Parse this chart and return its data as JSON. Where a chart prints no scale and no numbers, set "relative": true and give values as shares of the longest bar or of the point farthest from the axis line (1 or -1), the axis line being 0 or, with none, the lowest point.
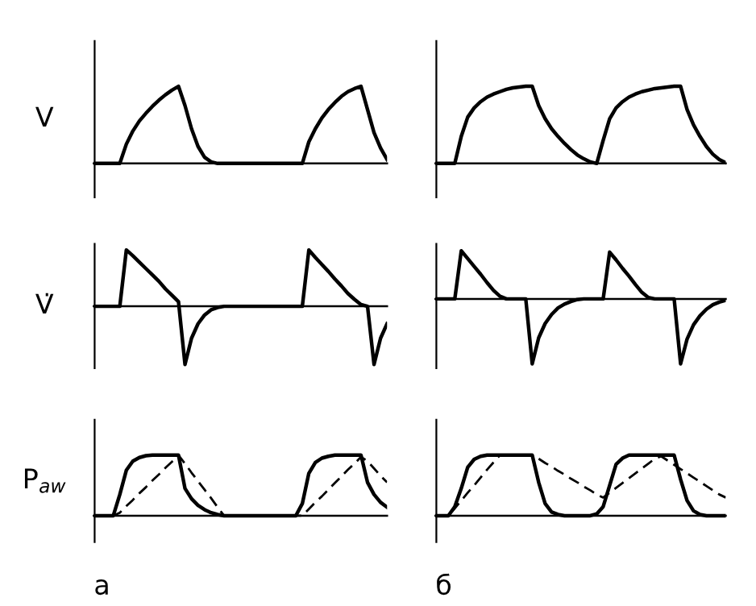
{
  "chart_data": [
    {
      "type": "line",
      "relative": true,
      "ylabel": "V",
      "categories": [
        null,
        null,
        null,
        null,
        null,
        null,
        null,
        null,
        null,
        null,
        null,
        null,
        null,
        null,
        null,
        null,
        null,
        null,
        null,
        null,
        null,
        null,
        null,
        null,
        null,
        null,
        null,
        null,
        null,
        null,
        null,
        null,
        null,
        null,
        null,
        null,
        null,
        null,
        null,
        null,
        null,
        null,
        null,
        null,
        null,
        null
      ],
      "series": [
        {
          "color": "#000000",
          "values": [
            0,
            0,
            0,
            0,
            0,
            0.25,
            0.42,
            0.55,
            0.65,
            0.74,
            0.82,
            0.89,
            0.95,
            1.0,
            0.75,
            0.45,
            0.22,
            0.08,
            0.02,
            0,
            0,
            0,
            0,
            0,
            0,
            0,
            0,
            0,
            0,
            0,
            0,
            0,
            0,
            0.28,
            0.45,
            0.59,
            0.7,
            0.79,
            0.87,
            0.93,
            0.97,
            1.0,
            0.7,
            0.4,
            0.2,
            0.05
          ]
        }
      ]
    },
    {
      "type": "line",
      "relative": true,
      "categories": [
        null,
        null,
        null,
        null,
        null,
        null,
        null,
        null,
        null,
        null,
        null,
        null,
        null,
        null,
        null,
        null,
        null,
        null,
        null,
        null,
        null,
        null,
        null,
        null,
        null,
        null,
        null,
        null,
        null,
        null,
        null,
        null,
        null,
        null,
        null,
        null,
        null,
        null,
        null,
        null,
        null,
        null,
        null,
        null,
        null,
        null
      ],
      "series": [
        {
          "color": "#000000",
          "values": [
            0,
            0,
            0,
            0,
            0.35,
            0.6,
            0.72,
            0.8,
            0.86,
            0.9,
            0.93,
            0.96,
            0.98,
            0.99,
            1.0,
            1.0,
            0.75,
            0.58,
            0.45,
            0.35,
            0.26,
            0.18,
            0.11,
            0.06,
            0.02,
            0,
            0.3,
            0.58,
            0.72,
            0.8,
            0.86,
            0.9,
            0.93,
            0.95,
            0.97,
            0.98,
            0.99,
            1.0,
            1.0,
            0.7,
            0.5,
            0.35,
            0.22,
            0.12,
            0.05,
            0.01
          ]
        }
      ]
    },
    {
      "type": "line",
      "relative": true,
      "ylabel": "V̇",
      "categories": [
        null,
        null,
        null,
        null,
        null,
        null,
        null,
        null,
        null,
        null,
        null,
        null,
        null,
        null,
        null,
        null,
        null,
        null,
        null,
        null,
        null,
        null,
        null,
        null,
        null,
        null,
        null,
        null,
        null,
        null,
        null,
        null,
        null,
        null,
        null,
        null,
        null,
        null,
        null,
        null,
        null,
        null,
        null,
        null,
        null,
        null
      ],
      "series": [
        {
          "color": "#000000",
          "values": [
            0,
            0,
            0,
            0,
            0,
            0.97,
            0.87,
            0.76,
            0.65,
            0.54,
            0.43,
            0.3,
            0.19,
            0.08,
            -1.0,
            -0.55,
            -0.3,
            -0.15,
            -0.06,
            -0.02,
            0,
            0,
            0,
            0,
            0,
            0,
            0,
            0,
            0,
            0,
            0,
            0,
            0,
            0.97,
            0.84,
            0.72,
            0.6,
            0.47,
            0.35,
            0.22,
            0.12,
            0.03,
            0,
            -1.0,
            -0.55,
            -0.3
          ]
        }
      ]
    },
    {
      "type": "line",
      "relative": true,
      "categories": [
        null,
        null,
        null,
        null,
        null,
        null,
        null,
        null,
        null,
        null,
        null,
        null,
        null,
        null,
        null,
        null,
        null,
        null,
        null,
        null,
        null,
        null,
        null,
        null,
        null,
        null,
        null,
        null,
        null,
        null,
        null,
        null,
        null,
        null,
        null,
        null,
        null,
        null,
        null,
        null,
        null,
        null,
        null,
        null,
        null,
        null
      ],
      "series": [
        {
          "color": "#000000",
          "values": [
            0,
            0,
            0,
            0,
            0.74,
            0.62,
            0.5,
            0.38,
            0.25,
            0.13,
            0.04,
            0,
            0,
            0,
            0,
            -1.0,
            -0.6,
            -0.38,
            -0.24,
            -0.14,
            -0.08,
            -0.04,
            -0.01,
            0,
            0,
            0,
            0,
            0.72,
            0.6,
            0.47,
            0.35,
            0.22,
            0.1,
            0.02,
            0,
            0,
            0,
            0,
            -1.0,
            -0.62,
            -0.4,
            -0.26,
            -0.16,
            -0.09,
            -0.05,
            -0.02
          ]
        }
      ]
    },
    {
      "type": "line",
      "relative": true,
      "ylabel": "P$_{aw}$",
      "xlabel": "а",
      "categories": [
        null,
        null,
        null,
        null,
        null,
        null,
        null,
        null,
        null,
        null,
        null,
        null,
        null,
        null,
        null,
        null,
        null,
        null,
        null,
        null,
        null,
        null,
        null,
        null,
        null,
        null,
        null,
        null,
        null,
        null,
        null,
        null,
        null,
        null,
        null,
        null,
        null,
        null,
        null,
        null,
        null,
        null,
        null,
        null,
        null,
        null
      ],
      "series": [
        {
          "color": "#000000",
          "values": [
            0,
            0,
            0,
            0,
            0.35,
            0.75,
            0.9,
            0.96,
            0.99,
            1.0,
            1.0,
            1.0,
            1.0,
            1.0,
            0.45,
            0.28,
            0.17,
            0.1,
            0.05,
            0.02,
            0,
            0,
            0,
            0,
            0,
            0,
            0,
            0,
            0,
            0,
            0,
            0,
            0.2,
            0.7,
            0.88,
            0.95,
            0.98,
            1.0,
            1.0,
            1.0,
            1.0,
            1.0,
            0.55,
            0.35,
            0.22,
            0.14
          ]
        },
        {
          "color": "#000000",
          "line_style": "dashed",
          "values": [
            0,
            0,
            0,
            0,
            0.05,
            0.16,
            0.26,
            0.37,
            0.47,
            0.58,
            0.68,
            0.79,
            0.89,
            1.0,
            0.86,
            0.71,
            0.57,
            0.43,
            0.29,
            0.14,
            0,
            0,
            0,
            0,
            0,
            0,
            0,
            0,
            0,
            0,
            0,
            0,
            0,
            0.11,
            0.22,
            0.32,
            0.43,
            0.54,
            0.65,
            0.76,
            0.86,
            0.97,
            0.9,
            0.78,
            0.66,
            0.55
          ]
        }
      ]
    },
    {
      "type": "line",
      "relative": true,
      "xlabel": "б",
      "categories": [
        null,
        null,
        null,
        null,
        null,
        null,
        null,
        null,
        null,
        null,
        null,
        null,
        null,
        null,
        null,
        null,
        null,
        null,
        null,
        null,
        null,
        null,
        null,
        null,
        null,
        null,
        null,
        null,
        null,
        null,
        null,
        null,
        null,
        null,
        null,
        null,
        null,
        null,
        null,
        null,
        null,
        null,
        null,
        null,
        null,
        null
      ],
      "series": [
        {
          "color": "#000000",
          "values": [
            0,
            0,
            0,
            0.15,
            0.45,
            0.8,
            0.93,
            0.98,
            1,
            1,
            1,
            1,
            1,
            1,
            1,
            1,
            0.55,
            0.2,
            0.06,
            0.02,
            0,
            0,
            0,
            0,
            0,
            0.03,
            0.15,
            0.5,
            0.85,
            0.95,
            1,
            1,
            1,
            1,
            1,
            1,
            1,
            1,
            0.6,
            0.25,
            0.08,
            0.02,
            0,
            0,
            0,
            0
          ]
        },
        {
          "color": "#000000",
          "line_style": "dashed",
          "values": [
            0,
            0,
            0,
            0.12,
            0.25,
            0.38,
            0.5,
            0.63,
            0.76,
            0.88,
            1.0,
            null,
            null,
            null,
            null,
            null,
            0.94,
            0.87,
            0.81,
            0.74,
            0.68,
            0.61,
            0.55,
            0.48,
            0.42,
            0.35,
            0.3,
            0.38,
            0.46,
            0.54,
            0.62,
            0.7,
            0.78,
            0.86,
            0.94,
            0.98,
            0.91,
            0.84,
            0.77,
            0.7,
            0.63,
            0.56,
            0.49,
            0.42,
            0.35,
            0.3
          ]
        }
      ]
    }
  ]
}
